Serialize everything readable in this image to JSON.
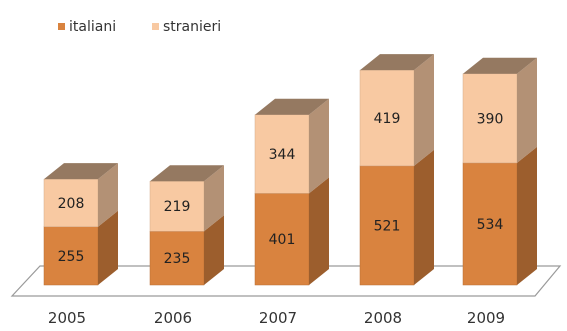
{
  "chart_data": {
    "type": "bar",
    "stacked": true,
    "three_d": true,
    "categories": [
      "2005",
      "2006",
      "2007",
      "2008",
      "2009"
    ],
    "series": [
      {
        "name": "italiani",
        "values": [
          255,
          235,
          401,
          521,
          534
        ],
        "color": "#D9833F"
      },
      {
        "name": "stranieri",
        "values": [
          208,
          219,
          344,
          419,
          390
        ],
        "color": "#F8C9A2"
      }
    ],
    "ylim": [
      0,
      950
    ],
    "legend_position": "top-left",
    "grid": false
  }
}
